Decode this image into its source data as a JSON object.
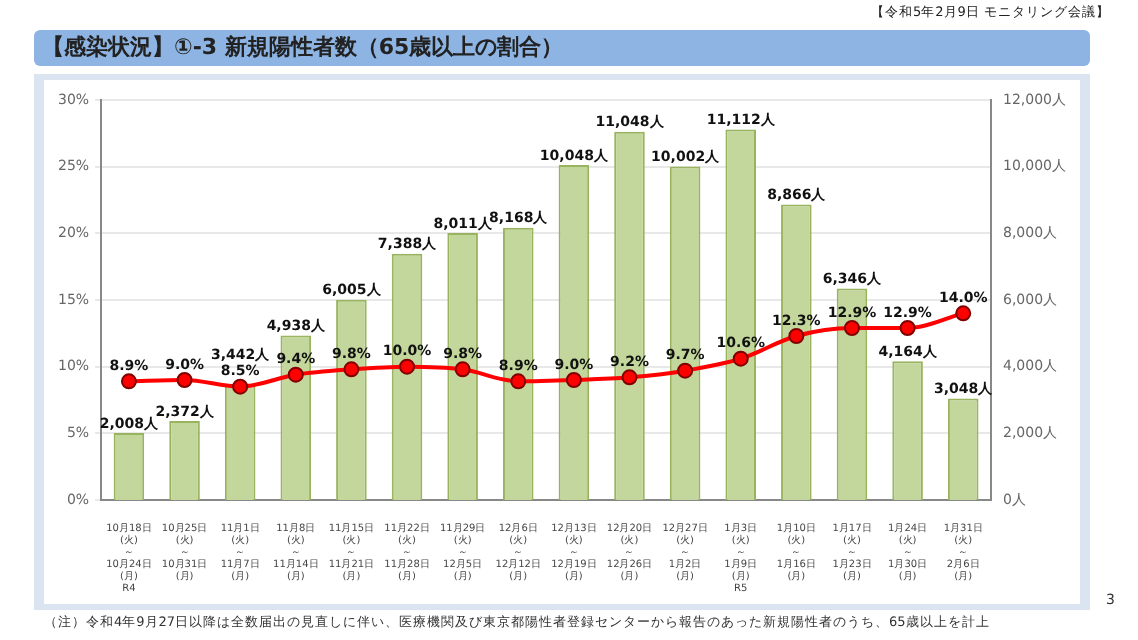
{
  "chart_data": {
    "type": "bar",
    "title": "【感染状況】①-3 新規陽性者数（65歳以上の割合）",
    "annotations": [
      "【令和5年2月9日 モニタリング会議】",
      "（注）令和4年9月27日以降は全数届出の見直しに伴い、医療機関及び東京都陽性者登録センターから報告のあった新規陽性者のうち、65歳以上を計上",
      "3"
    ],
    "categories": [
      "10月18日\n(火)\n～\n10月24日\n(月)\nR4",
      "10月25日\n(火)\n～\n10月31日\n(月)",
      "11月1日\n(火)\n～\n11月7日\n(月)",
      "11月8日\n(火)\n～\n11月14日\n(月)",
      "11月15日\n(火)\n～\n11月21日\n(月)",
      "11月22日\n(火)\n～\n11月28日\n(月)",
      "11月29日\n(火)\n～\n12月5日\n(月)",
      "12月6日\n(火)\n～\n12月12日\n(月)",
      "12月13日\n(火)\n～\n12月19日\n(月)",
      "12月20日\n(火)\n～\n12月26日\n(月)",
      "12月27日\n(火)\n～\n1月2日\n(月)",
      "1月3日\n(火)\n～\n1月9日\n(月)\nR5",
      "1月10日\n(火)\n～\n1月16日\n(月)",
      "1月17日\n(火)\n～\n1月23日\n(月)",
      "1月24日\n(火)\n～\n1月30日\n(月)",
      "1月31日\n(火)\n～\n2月6日\n(月)"
    ],
    "series": [
      {
        "axis": "y2",
        "color": "#c3d69b",
        "values": [
          2008,
          2372,
          3442,
          4938,
          6005,
          7388,
          8011,
          8168,
          10048,
          11048,
          10002,
          11112,
          8866,
          6346,
          4164,
          3048
        ],
        "value_labels": [
          "2,008人",
          "2,372人",
          "3,442人",
          "4,938人",
          "6,005人",
          "7,388人",
          "8,011人",
          "8,168人",
          "10,048人",
          "11,048人",
          "10,002人",
          "11,112人",
          "8,866人",
          "6,346人",
          "4,164人",
          "3,048人"
        ]
      },
      {
        "type": "line",
        "axis": "y",
        "color": "#ff0000",
        "marker": "circle",
        "values": [
          8.9,
          9.0,
          8.5,
          9.4,
          9.8,
          10.0,
          9.8,
          8.9,
          9.0,
          9.2,
          9.7,
          10.6,
          12.3,
          12.9,
          12.9,
          14.0
        ],
        "value_labels": [
          "8.9%",
          "9.0%",
          "8.5%",
          "9.4%",
          "9.8%",
          "10.0%",
          "9.8%",
          "8.9%",
          "9.0%",
          "9.2%",
          "9.7%",
          "10.6%",
          "12.3%",
          "12.9%",
          "12.9%",
          "14.0%"
        ]
      }
    ],
    "ylim": [
      0,
      30
    ],
    "yticks": [
      {
        "value": 0,
        "label": "0%"
      },
      {
        "value": 5,
        "label": "5%"
      },
      {
        "value": 10,
        "label": "10%"
      },
      {
        "value": 15,
        "label": "15%"
      },
      {
        "value": 20,
        "label": "20%"
      },
      {
        "value": 25,
        "label": "25%"
      },
      {
        "value": 30,
        "label": "30%"
      }
    ],
    "y2lim": [
      0,
      12000
    ],
    "y2ticks": [
      {
        "value": 0,
        "label": "0人"
      },
      {
        "value": 2000,
        "label": "2,000人"
      },
      {
        "value": 4000,
        "label": "4,000人"
      },
      {
        "value": 6000,
        "label": "6,000人"
      },
      {
        "value": 8000,
        "label": "8,000人"
      },
      {
        "value": 10000,
        "label": "10,000人"
      },
      {
        "value": 12000,
        "label": "12,000人"
      }
    ],
    "grid": "y",
    "legend": false
  }
}
